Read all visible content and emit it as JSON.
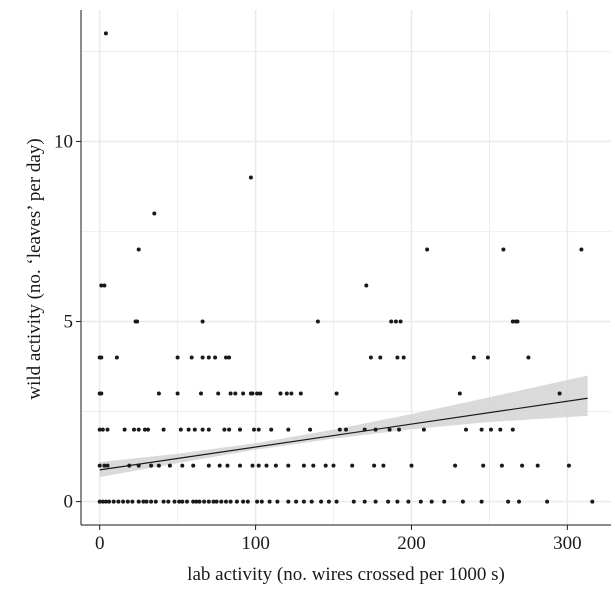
{
  "chart_data": {
    "type": "scatter",
    "title": "",
    "xlabel": "lab activity (no. wires crossed per 1000 s)",
    "ylabel": "wild activity (no. ‘leaves’ per day)",
    "xlim": [
      -12,
      328
    ],
    "ylim": [
      -0.65,
      13.65
    ],
    "x_ticks": [
      0,
      100,
      200,
      300
    ],
    "y_ticks": [
      0,
      5,
      10
    ],
    "x_minor_gridlines": [
      50,
      150,
      250
    ],
    "y_minor_gridlines": [
      2.5,
      7.5,
      12.5
    ],
    "grid": true,
    "colors": {
      "points": "#1a1a1a",
      "fit_line": "#1a1a1a",
      "ribbon": "#d4d4d4",
      "grid": "#ebebeb"
    },
    "points": [
      [
        4,
        13
      ],
      [
        97,
        9
      ],
      [
        35,
        8
      ],
      [
        25,
        7
      ],
      [
        210,
        7
      ],
      [
        259,
        7
      ],
      [
        309,
        7
      ],
      [
        171,
        6
      ],
      [
        1,
        6
      ],
      [
        3,
        6
      ],
      [
        23,
        5
      ],
      [
        24,
        5
      ],
      [
        66,
        5
      ],
      [
        140,
        5
      ],
      [
        187,
        5
      ],
      [
        190,
        5
      ],
      [
        193,
        5
      ],
      [
        265,
        5
      ],
      [
        267,
        5
      ],
      [
        268,
        5
      ],
      [
        0,
        4
      ],
      [
        1,
        4
      ],
      [
        11,
        4
      ],
      [
        50,
        4
      ],
      [
        59,
        4
      ],
      [
        66,
        4
      ],
      [
        70,
        4
      ],
      [
        74,
        4
      ],
      [
        81,
        4
      ],
      [
        83,
        4
      ],
      [
        174,
        4
      ],
      [
        180,
        4
      ],
      [
        191,
        4
      ],
      [
        195,
        4
      ],
      [
        240,
        4
      ],
      [
        249,
        4
      ],
      [
        275,
        4
      ],
      [
        0,
        3
      ],
      [
        1,
        3
      ],
      [
        38,
        3
      ],
      [
        50,
        3
      ],
      [
        65,
        3
      ],
      [
        76,
        3
      ],
      [
        84,
        3
      ],
      [
        87,
        3
      ],
      [
        92,
        3
      ],
      [
        97,
        3
      ],
      [
        98,
        3
      ],
      [
        101,
        3
      ],
      [
        103,
        3
      ],
      [
        116,
        3
      ],
      [
        120,
        3
      ],
      [
        123,
        3
      ],
      [
        129,
        3
      ],
      [
        152,
        3
      ],
      [
        231,
        3
      ],
      [
        295,
        3
      ],
      [
        0,
        2
      ],
      [
        2,
        2
      ],
      [
        5,
        2
      ],
      [
        16,
        2
      ],
      [
        22,
        2
      ],
      [
        25,
        2
      ],
      [
        29,
        2
      ],
      [
        31,
        2
      ],
      [
        41,
        2
      ],
      [
        52,
        2
      ],
      [
        57,
        2
      ],
      [
        61,
        2
      ],
      [
        66,
        2
      ],
      [
        70,
        2
      ],
      [
        80,
        2
      ],
      [
        83,
        2
      ],
      [
        90,
        2
      ],
      [
        99,
        2
      ],
      [
        102,
        2
      ],
      [
        110,
        2
      ],
      [
        121,
        2
      ],
      [
        135,
        2
      ],
      [
        154,
        2
      ],
      [
        158,
        2
      ],
      [
        170,
        2
      ],
      [
        177,
        2
      ],
      [
        186,
        2
      ],
      [
        192,
        2
      ],
      [
        208,
        2
      ],
      [
        235,
        2
      ],
      [
        245,
        2
      ],
      [
        251,
        2
      ],
      [
        257,
        2
      ],
      [
        265,
        2
      ],
      [
        0,
        1
      ],
      [
        3,
        1
      ],
      [
        5,
        1
      ],
      [
        19,
        1
      ],
      [
        25,
        1
      ],
      [
        33,
        1
      ],
      [
        38,
        1
      ],
      [
        45,
        1
      ],
      [
        53,
        1
      ],
      [
        60,
        1
      ],
      [
        70,
        1
      ],
      [
        77,
        1
      ],
      [
        82,
        1
      ],
      [
        90,
        1
      ],
      [
        98,
        1
      ],
      [
        102,
        1
      ],
      [
        107,
        1
      ],
      [
        113,
        1
      ],
      [
        121,
        1
      ],
      [
        131,
        1
      ],
      [
        137,
        1
      ],
      [
        145,
        1
      ],
      [
        150,
        1
      ],
      [
        162,
        1
      ],
      [
        176,
        1
      ],
      [
        182,
        1
      ],
      [
        200,
        1
      ],
      [
        228,
        1
      ],
      [
        246,
        1
      ],
      [
        258,
        1
      ],
      [
        271,
        1
      ],
      [
        281,
        1
      ],
      [
        301,
        1
      ],
      [
        0,
        0
      ],
      [
        2,
        0
      ],
      [
        4,
        0
      ],
      [
        6,
        0
      ],
      [
        9,
        0
      ],
      [
        12,
        0
      ],
      [
        15,
        0
      ],
      [
        18,
        0
      ],
      [
        21,
        0
      ],
      [
        25,
        0
      ],
      [
        28,
        0
      ],
      [
        30,
        0
      ],
      [
        33,
        0
      ],
      [
        36,
        0
      ],
      [
        41,
        0
      ],
      [
        44,
        0
      ],
      [
        48,
        0
      ],
      [
        51,
        0
      ],
      [
        53,
        0
      ],
      [
        56,
        0
      ],
      [
        60,
        0
      ],
      [
        62,
        0
      ],
      [
        64,
        0
      ],
      [
        67,
        0
      ],
      [
        70,
        0
      ],
      [
        73,
        0
      ],
      [
        75,
        0
      ],
      [
        78,
        0
      ],
      [
        81,
        0
      ],
      [
        84,
        0
      ],
      [
        88,
        0
      ],
      [
        92,
        0
      ],
      [
        95,
        0
      ],
      [
        101,
        0
      ],
      [
        104,
        0
      ],
      [
        109,
        0
      ],
      [
        114,
        0
      ],
      [
        121,
        0
      ],
      [
        126,
        0
      ],
      [
        131,
        0
      ],
      [
        136,
        0
      ],
      [
        142,
        0
      ],
      [
        147,
        0
      ],
      [
        152,
        0
      ],
      [
        163,
        0
      ],
      [
        170,
        0
      ],
      [
        177,
        0
      ],
      [
        185,
        0
      ],
      [
        191,
        0
      ],
      [
        198,
        0
      ],
      [
        206,
        0
      ],
      [
        213,
        0
      ],
      [
        221,
        0
      ],
      [
        233,
        0
      ],
      [
        245,
        0
      ],
      [
        262,
        0
      ],
      [
        269,
        0
      ],
      [
        287,
        0
      ],
      [
        316,
        0
      ]
    ],
    "fit": {
      "x_start": 0,
      "y_start": 0.88,
      "x_end": 313,
      "y_end": 2.87
    },
    "confidence_band": [
      [
        0,
        0.68,
        1.1
      ],
      [
        50,
        1.07,
        1.33
      ],
      [
        100,
        1.44,
        1.62
      ],
      [
        150,
        1.75,
        2.0
      ],
      [
        200,
        2.01,
        2.43
      ],
      [
        250,
        2.21,
        2.9
      ],
      [
        313,
        2.38,
        3.5
      ]
    ]
  }
}
